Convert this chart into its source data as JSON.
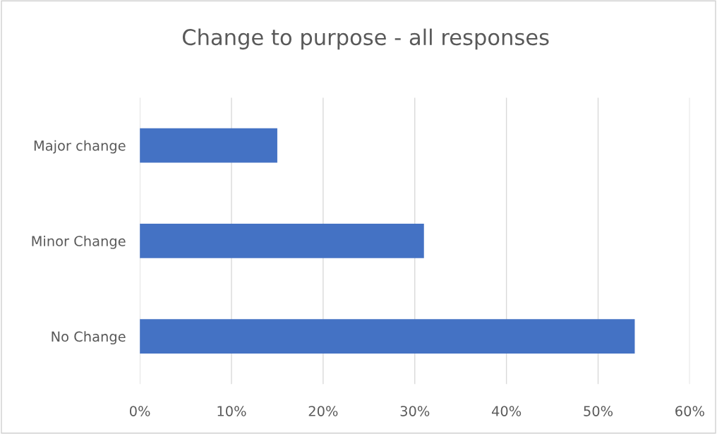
{
  "chart_data": {
    "type": "bar",
    "orientation": "horizontal",
    "title": "Change to purpose - all responses",
    "categories": [
      "Major change",
      "Minor Change",
      "No Change"
    ],
    "values": [
      15,
      31,
      54
    ],
    "color": "#4472c4",
    "xlim": [
      0,
      60
    ],
    "xticks": [
      {
        "value": 0,
        "label": "0%"
      },
      {
        "value": 10,
        "label": "10%"
      },
      {
        "value": 20,
        "label": "20%"
      },
      {
        "value": 30,
        "label": "30%"
      },
      {
        "value": 40,
        "label": "40%"
      },
      {
        "value": 50,
        "label": "50%"
      },
      {
        "value": 60,
        "label": "60%"
      }
    ],
    "grid": "x"
  }
}
